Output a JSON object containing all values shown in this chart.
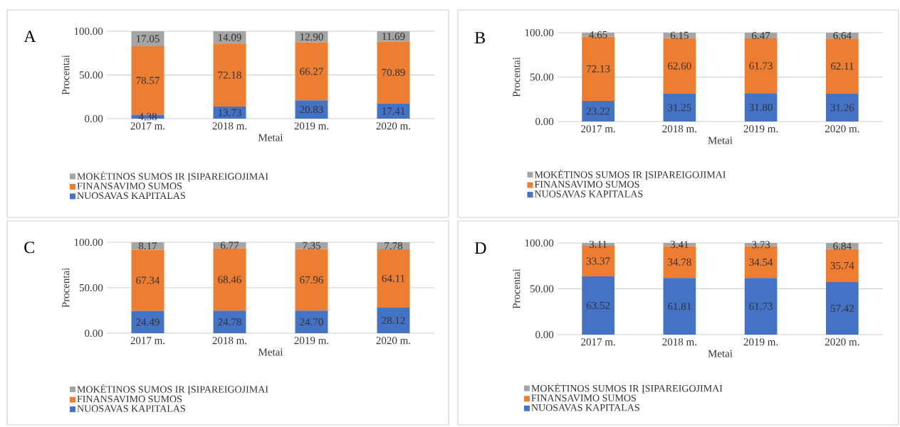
{
  "chart_data": [
    {
      "type": "bar",
      "title": "A",
      "xlabel": "Metai",
      "ylabel": "Procentai",
      "categories": [
        "2017 m.",
        "2018 m.",
        "2019 m.",
        "2020 m."
      ],
      "stacked": true,
      "grid": "y",
      "legend": "bottom",
      "ylim": [
        0,
        100
      ],
      "yticks": [
        {
          "value": 0,
          "label": "0.00"
        },
        {
          "value": 50,
          "label": "50.00"
        },
        {
          "value": 100,
          "label": "100.00"
        }
      ],
      "series": [
        {
          "name": "NUOSAVAS KAPITALAS",
          "color": "#4472c4",
          "values": [
            4.38,
            13.73,
            20.83,
            17.41
          ],
          "value_labels": [
            "4.38",
            "13.73",
            "20.83",
            "17.41"
          ]
        },
        {
          "name": "FINANSAVIMO SUMOS",
          "color": "#ed7d31",
          "values": [
            78.57,
            72.18,
            66.27,
            70.89
          ],
          "value_labels": [
            "78.57",
            "72.18",
            "66.27",
            "70.89"
          ]
        },
        {
          "name": "MOKĖTINOS SUMOS IR ĮSIPAREIGOJIMAI",
          "color": "#a5a5a5",
          "values": [
            17.05,
            14.09,
            12.9,
            11.69
          ],
          "value_labels": [
            "17.05",
            "14.09",
            "12.90",
            "11.69"
          ]
        }
      ]
    },
    {
      "type": "bar",
      "title": "B",
      "xlabel": "Metai",
      "ylabel": "Procentai",
      "categories": [
        "2017 m.",
        "2018 m.",
        "2019 m.",
        "2020 m."
      ],
      "stacked": true,
      "grid": "y",
      "legend": "bottom",
      "ylim": [
        0,
        100
      ],
      "yticks": [
        {
          "value": 0,
          "label": "0.00"
        },
        {
          "value": 50,
          "label": "50.00"
        },
        {
          "value": 100,
          "label": "100.00"
        }
      ],
      "series": [
        {
          "name": "NUOSAVAS KAPITALAS",
          "color": "#4472c4",
          "values": [
            23.22,
            31.25,
            31.8,
            31.26
          ],
          "value_labels": [
            "23.22",
            "31.25",
            "31.80",
            "31.26"
          ]
        },
        {
          "name": "FINANSAVIMO SUMOS",
          "color": "#ed7d31",
          "values": [
            72.13,
            62.6,
            61.73,
            62.11
          ],
          "value_labels": [
            "72.13",
            "62.60",
            "61.73",
            "62.11"
          ]
        },
        {
          "name": "MOKĖTINOS SUMOS IR ĮSIPAREIGOJIMAI",
          "color": "#a5a5a5",
          "values": [
            4.65,
            6.15,
            6.47,
            6.64
          ],
          "value_labels": [
            "4.65",
            "6.15",
            "6.47",
            "6.64"
          ]
        }
      ]
    },
    {
      "type": "bar",
      "title": "C",
      "xlabel": "Metai",
      "ylabel": "Procentai",
      "categories": [
        "2017 m.",
        "2018 m.",
        "2019 m.",
        "2020 m."
      ],
      "stacked": true,
      "grid": "y",
      "legend": "bottom",
      "ylim": [
        0,
        100
      ],
      "yticks": [
        {
          "value": 0,
          "label": "0.00"
        },
        {
          "value": 50,
          "label": "50.00"
        },
        {
          "value": 100,
          "label": "100.00"
        }
      ],
      "series": [
        {
          "name": "NUOSAVAS KAPITALAS",
          "color": "#4472c4",
          "values": [
            24.49,
            24.78,
            24.7,
            28.12
          ],
          "value_labels": [
            "24.49",
            "24.78",
            "24.70",
            "28.12"
          ]
        },
        {
          "name": "FINANSAVIMO SUMOS",
          "color": "#ed7d31",
          "values": [
            67.34,
            68.46,
            67.96,
            64.11
          ],
          "value_labels": [
            "67.34",
            "68.46",
            "67.96",
            "64.11"
          ]
        },
        {
          "name": "MOKĖTINOS SUMOS IR ĮSIPAREIGOJIMAI",
          "color": "#a5a5a5",
          "values": [
            8.17,
            6.77,
            7.35,
            7.78
          ],
          "value_labels": [
            "8.17",
            "6.77",
            "7.35",
            "7.78"
          ]
        }
      ]
    },
    {
      "type": "bar",
      "title": "D",
      "xlabel": "Metai",
      "ylabel": "Procentai",
      "categories": [
        "2017 m.",
        "2018 m.",
        "2019 m.",
        "2020 m."
      ],
      "stacked": true,
      "grid": "y",
      "legend": "bottom",
      "ylim": [
        0,
        100
      ],
      "yticks": [
        {
          "value": 0,
          "label": "0.00"
        },
        {
          "value": 50,
          "label": "50.00"
        },
        {
          "value": 100,
          "label": "100.00"
        }
      ],
      "series": [
        {
          "name": "NUOSAVAS KAPITALAS",
          "color": "#4472c4",
          "values": [
            63.52,
            61.81,
            61.73,
            57.42
          ],
          "value_labels": [
            "63.52",
            "61.81",
            "61.73",
            "57.42"
          ]
        },
        {
          "name": "FINANSAVIMO SUMOS",
          "color": "#ed7d31",
          "values": [
            33.37,
            34.78,
            34.54,
            35.74
          ],
          "value_labels": [
            "33.37",
            "34.78",
            "34.54",
            "35.74"
          ]
        },
        {
          "name": "MOKĖTINOS SUMOS IR ĮSIPAREIGOJIMAI",
          "color": "#a5a5a5",
          "values": [
            3.11,
            3.41,
            3.73,
            6.84
          ],
          "value_labels": [
            "3.11",
            "3.41",
            "3.73",
            "6.84"
          ]
        }
      ]
    }
  ]
}
